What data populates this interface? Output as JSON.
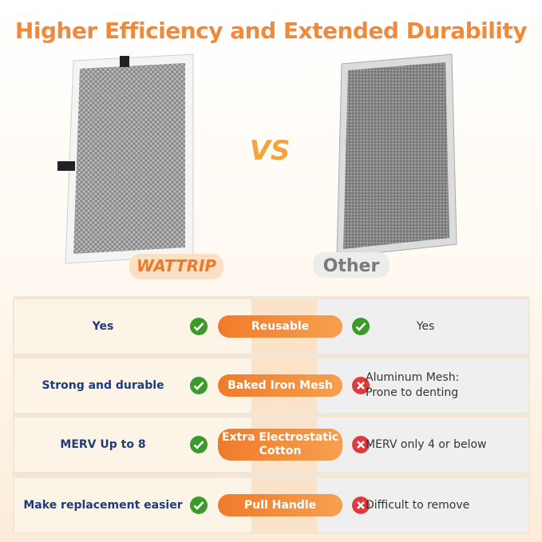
{
  "header": {
    "title": "Higher Efficiency and Extended Durability"
  },
  "comparison": {
    "brand": "WATTRIP",
    "vs": "VS",
    "other": "Other",
    "rows": [
      {
        "wattrip": "Yes",
        "feature": [
          "Reusable"
        ],
        "other": [
          "Yes"
        ]
      },
      {
        "wattrip": "Strong and durable",
        "feature": [
          "Baked Iron Mesh"
        ],
        "other": [
          "Aluminum Mesh:",
          "Prone to denting"
        ]
      },
      {
        "wattrip": "MERV Up to 8",
        "feature": [
          "Extra Electrostatic",
          "Cotton"
        ],
        "other": [
          "MERV only 4 or below"
        ]
      },
      {
        "wattrip": "Make replacement easier",
        "feature": [
          "Pull Handle"
        ],
        "other": [
          "Difficult to remove"
        ]
      }
    ]
  }
}
